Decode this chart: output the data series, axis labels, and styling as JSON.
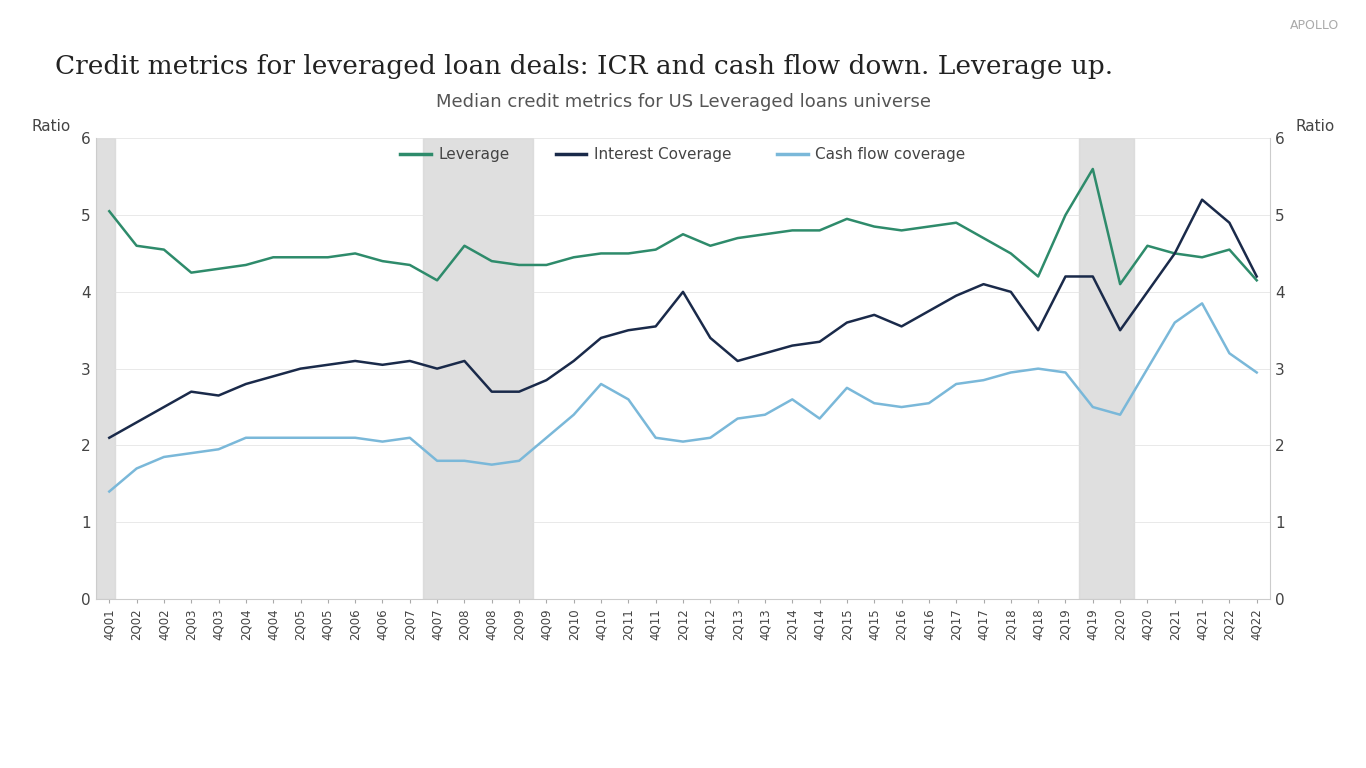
{
  "title": "Credit metrics for leveraged loan deals: ICR and cash flow down. Leverage up.",
  "subtitle": "Median credit metrics for US Leveraged loans universe",
  "ylabel_left": "Ratio",
  "ylabel_right": "Ratio",
  "watermark": "APOLLO",
  "ylim": [
    0,
    6
  ],
  "yticks": [
    0,
    1,
    2,
    3,
    4,
    5,
    6
  ],
  "shaded_regions": [
    {
      "start": "4Q07",
      "end": "2Q09"
    },
    {
      "start": "4Q19",
      "end": "2Q20"
    }
  ],
  "x_labels": [
    "4Q01",
    "2Q02",
    "4Q02",
    "2Q03",
    "4Q03",
    "2Q04",
    "4Q04",
    "2Q05",
    "4Q05",
    "2Q06",
    "4Q06",
    "2Q07",
    "4Q07",
    "2Q08",
    "4Q08",
    "2Q09",
    "4Q09",
    "2Q10",
    "4Q10",
    "2Q11",
    "4Q11",
    "2Q12",
    "4Q12",
    "2Q13",
    "4Q13",
    "2Q14",
    "4Q14",
    "2Q15",
    "4Q15",
    "2Q16",
    "4Q16",
    "2Q17",
    "4Q17",
    "2Q18",
    "4Q18",
    "2Q19",
    "4Q19",
    "2Q20",
    "4Q20",
    "2Q21",
    "4Q21",
    "2Q22",
    "4Q22"
  ],
  "leverage": [
    5.05,
    4.6,
    4.55,
    4.25,
    4.3,
    4.35,
    4.45,
    4.45,
    4.45,
    4.5,
    4.4,
    4.35,
    4.15,
    4.6,
    4.4,
    4.35,
    4.35,
    4.45,
    4.5,
    4.5,
    4.55,
    4.75,
    4.6,
    4.7,
    4.75,
    4.8,
    4.8,
    4.95,
    4.85,
    4.8,
    4.85,
    4.9,
    4.7,
    4.5,
    4.2,
    5.0,
    5.6,
    4.1,
    4.6,
    4.5,
    4.45,
    4.55,
    4.15
  ],
  "interest_coverage": [
    2.1,
    2.3,
    2.5,
    2.7,
    2.65,
    2.8,
    2.9,
    3.0,
    3.05,
    3.1,
    3.05,
    3.1,
    3.0,
    3.1,
    2.7,
    2.7,
    2.85,
    3.1,
    3.4,
    3.5,
    3.55,
    4.0,
    3.4,
    3.1,
    3.2,
    3.3,
    3.35,
    3.6,
    3.7,
    3.55,
    3.75,
    3.95,
    4.1,
    4.0,
    3.5,
    4.2,
    4.2,
    3.5,
    4.0,
    4.5,
    5.2,
    4.9,
    4.2
  ],
  "cash_flow_coverage": [
    1.4,
    1.7,
    1.85,
    1.9,
    1.95,
    2.1,
    2.1,
    2.1,
    2.1,
    2.1,
    2.05,
    2.1,
    1.8,
    1.8,
    1.75,
    1.8,
    2.1,
    2.4,
    2.8,
    2.6,
    2.1,
    2.05,
    2.1,
    2.35,
    2.4,
    2.6,
    2.35,
    2.75,
    2.55,
    2.5,
    2.55,
    2.8,
    2.85,
    2.95,
    3.0,
    2.95,
    2.5,
    2.4,
    3.0,
    3.6,
    3.85,
    3.2,
    2.95
  ],
  "leverage_color": "#2e8b6b",
  "interest_coverage_color": "#1a2a4a",
  "cash_flow_color": "#7ab8d9",
  "legend_items": [
    "Leverage",
    "Interest Coverage",
    "Cash flow coverage"
  ],
  "background_color": "#ffffff",
  "shaded_color": "#d8d8d8",
  "left_shade_end": "4Q01"
}
